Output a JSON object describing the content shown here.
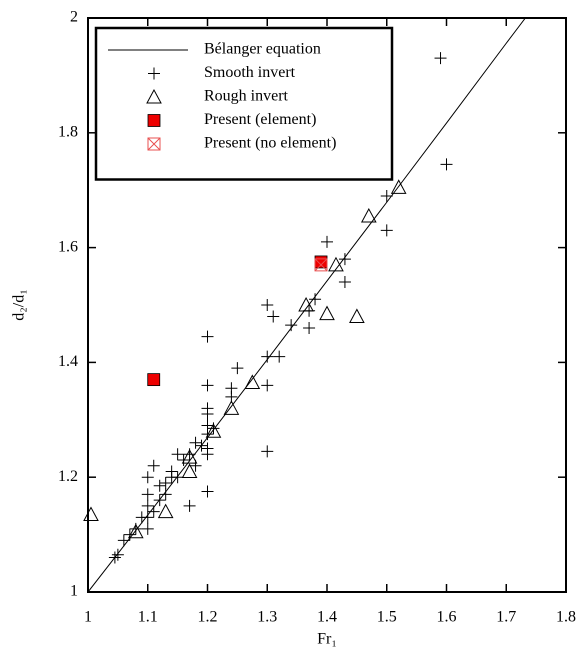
{
  "chart_data": {
    "type": "scatter",
    "x_label": "Fr₁",
    "y_label": "d₂/d₁",
    "xlim": [
      1,
      1.8
    ],
    "xticks": [
      1,
      1.1,
      1.2,
      1.3,
      1.4,
      1.5,
      1.6,
      1.7,
      1.8
    ],
    "ylim": [
      1,
      2
    ],
    "yticks": [
      1,
      1.2,
      1.4,
      1.6,
      1.8,
      2
    ],
    "legend": "upper left",
    "series": [
      {
        "name": "Bélanger equation",
        "marker": "line",
        "color": "#000000",
        "x": [
          1,
          1.1,
          1.2,
          1.3,
          1.4,
          1.5,
          1.6,
          1.7,
          1.732
        ],
        "values": [
          1,
          1.134,
          1.269,
          1.405,
          1.542,
          1.679,
          1.817,
          1.956,
          2
        ]
      },
      {
        "name": "Smooth invert",
        "marker": "plus",
        "color": "#000000",
        "x": [
          1.59,
          1.6,
          1.5,
          1.5,
          1.4,
          1.43,
          1.43,
          1.38,
          1.37,
          1.37,
          1.34,
          1.3,
          1.31,
          1.3,
          1.32,
          1.25,
          1.3,
          1.24,
          1.24,
          1.2,
          1.2,
          1.2,
          1.2,
          1.2,
          1.2,
          1.2,
          1.2,
          1.21,
          1.19,
          1.18,
          1.17,
          1.16,
          1.15,
          1.2,
          1.17,
          1.3,
          1.14,
          1.13,
          1.13,
          1.12,
          1.11,
          1.1,
          1.1,
          1.1,
          1.1,
          1.1,
          1.09,
          1.08,
          1.07,
          1.06,
          1.05,
          1.045,
          1.11,
          1.12,
          1.15,
          1.14,
          1.18
        ],
        "values": [
          1.93,
          1.745,
          1.69,
          1.63,
          1.61,
          1.58,
          1.54,
          1.51,
          1.49,
          1.46,
          1.465,
          1.5,
          1.48,
          1.41,
          1.41,
          1.39,
          1.36,
          1.355,
          1.34,
          1.445,
          1.36,
          1.32,
          1.31,
          1.29,
          1.275,
          1.25,
          1.24,
          1.285,
          1.255,
          1.26,
          1.24,
          1.23,
          1.24,
          1.175,
          1.15,
          1.245,
          1.2,
          1.19,
          1.17,
          1.16,
          1.22,
          1.2,
          1.17,
          1.15,
          1.13,
          1.11,
          1.13,
          1.11,
          1.1,
          1.09,
          1.065,
          1.06,
          1.14,
          1.185,
          1.2,
          1.21,
          1.22
        ]
      },
      {
        "name": "Rough invert",
        "marker": "triangle",
        "color": "#000000",
        "x": [
          1.005,
          1.08,
          1.13,
          1.17,
          1.17,
          1.21,
          1.24,
          1.275,
          1.365,
          1.4,
          1.45,
          1.415,
          1.47,
          1.52
        ],
        "values": [
          1.135,
          1.105,
          1.14,
          1.21,
          1.235,
          1.28,
          1.32,
          1.365,
          1.5,
          1.485,
          1.48,
          1.57,
          1.655,
          1.705
        ]
      },
      {
        "name": "Present (element)",
        "marker": "square",
        "color": "#ee0000",
        "x": [
          1.11,
          1.39
        ],
        "values": [
          1.37,
          1.575
        ]
      },
      {
        "name": "Present (no element)",
        "marker": "crossed-square",
        "color": "#e85050",
        "x": [
          1.39
        ],
        "values": [
          1.57
        ]
      }
    ]
  }
}
